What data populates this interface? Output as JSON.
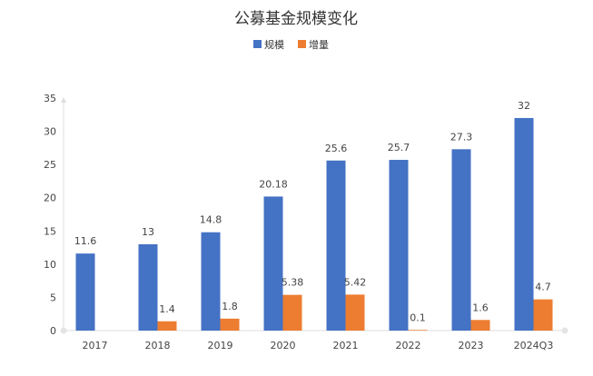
{
  "chart_data": {
    "type": "bar",
    "title": "公募基金规模变化",
    "categories": [
      "2017",
      "2018",
      "2019",
      "2020",
      "2021",
      "2022",
      "2023",
      "2024Q3"
    ],
    "series": [
      {
        "name": "规模",
        "color": "#4472c4",
        "values": [
          11.6,
          13,
          14.8,
          20.18,
          25.6,
          25.7,
          27.3,
          32
        ],
        "labels": [
          "11.6",
          "13",
          "14.8",
          "20.18",
          "25.6",
          "25.7",
          "27.3",
          "32"
        ]
      },
      {
        "name": "增量",
        "color": "#ed7d31",
        "values": [
          null,
          1.4,
          1.8,
          5.38,
          5.42,
          0.1,
          1.6,
          4.7
        ],
        "labels": [
          null,
          "1.4",
          "1.8",
          "5.38",
          "5.42",
          "0.1",
          "1.6",
          "4.7"
        ]
      }
    ],
    "xlabel": "",
    "ylabel": "",
    "ylim": [
      0,
      35
    ],
    "yticks": [
      "0",
      "5",
      "10",
      "15",
      "20",
      "25",
      "30",
      "35"
    ],
    "grid": false,
    "legend": "top-center"
  }
}
